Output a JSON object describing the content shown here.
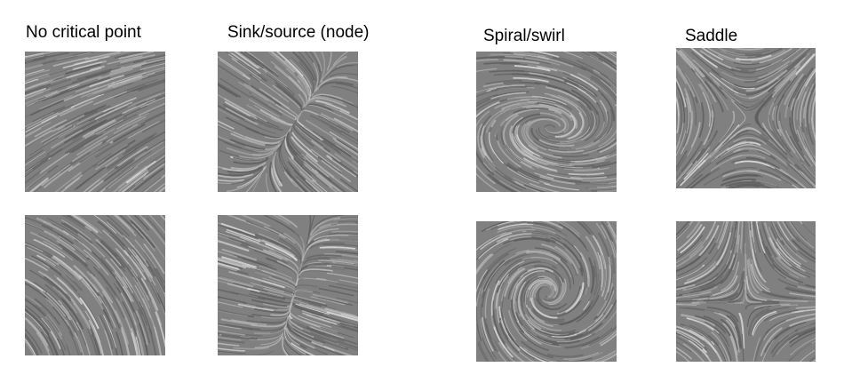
{
  "categories": [
    {
      "id": "no-critical",
      "label": "No critical point",
      "pattern": "uniform-flow"
    },
    {
      "id": "node",
      "label": "Sink/source (node)",
      "pattern": "node"
    },
    {
      "id": "spiral",
      "label": "Spiral/swirl",
      "pattern": "spiral"
    },
    {
      "id": "saddle",
      "label": "Saddle",
      "pattern": "saddle"
    }
  ],
  "colors": {
    "tile_background": "#808080",
    "streak_dark": "#5e5e5e",
    "streak_light": "#b4b4b4",
    "streak_white": "#dcdcdc"
  }
}
